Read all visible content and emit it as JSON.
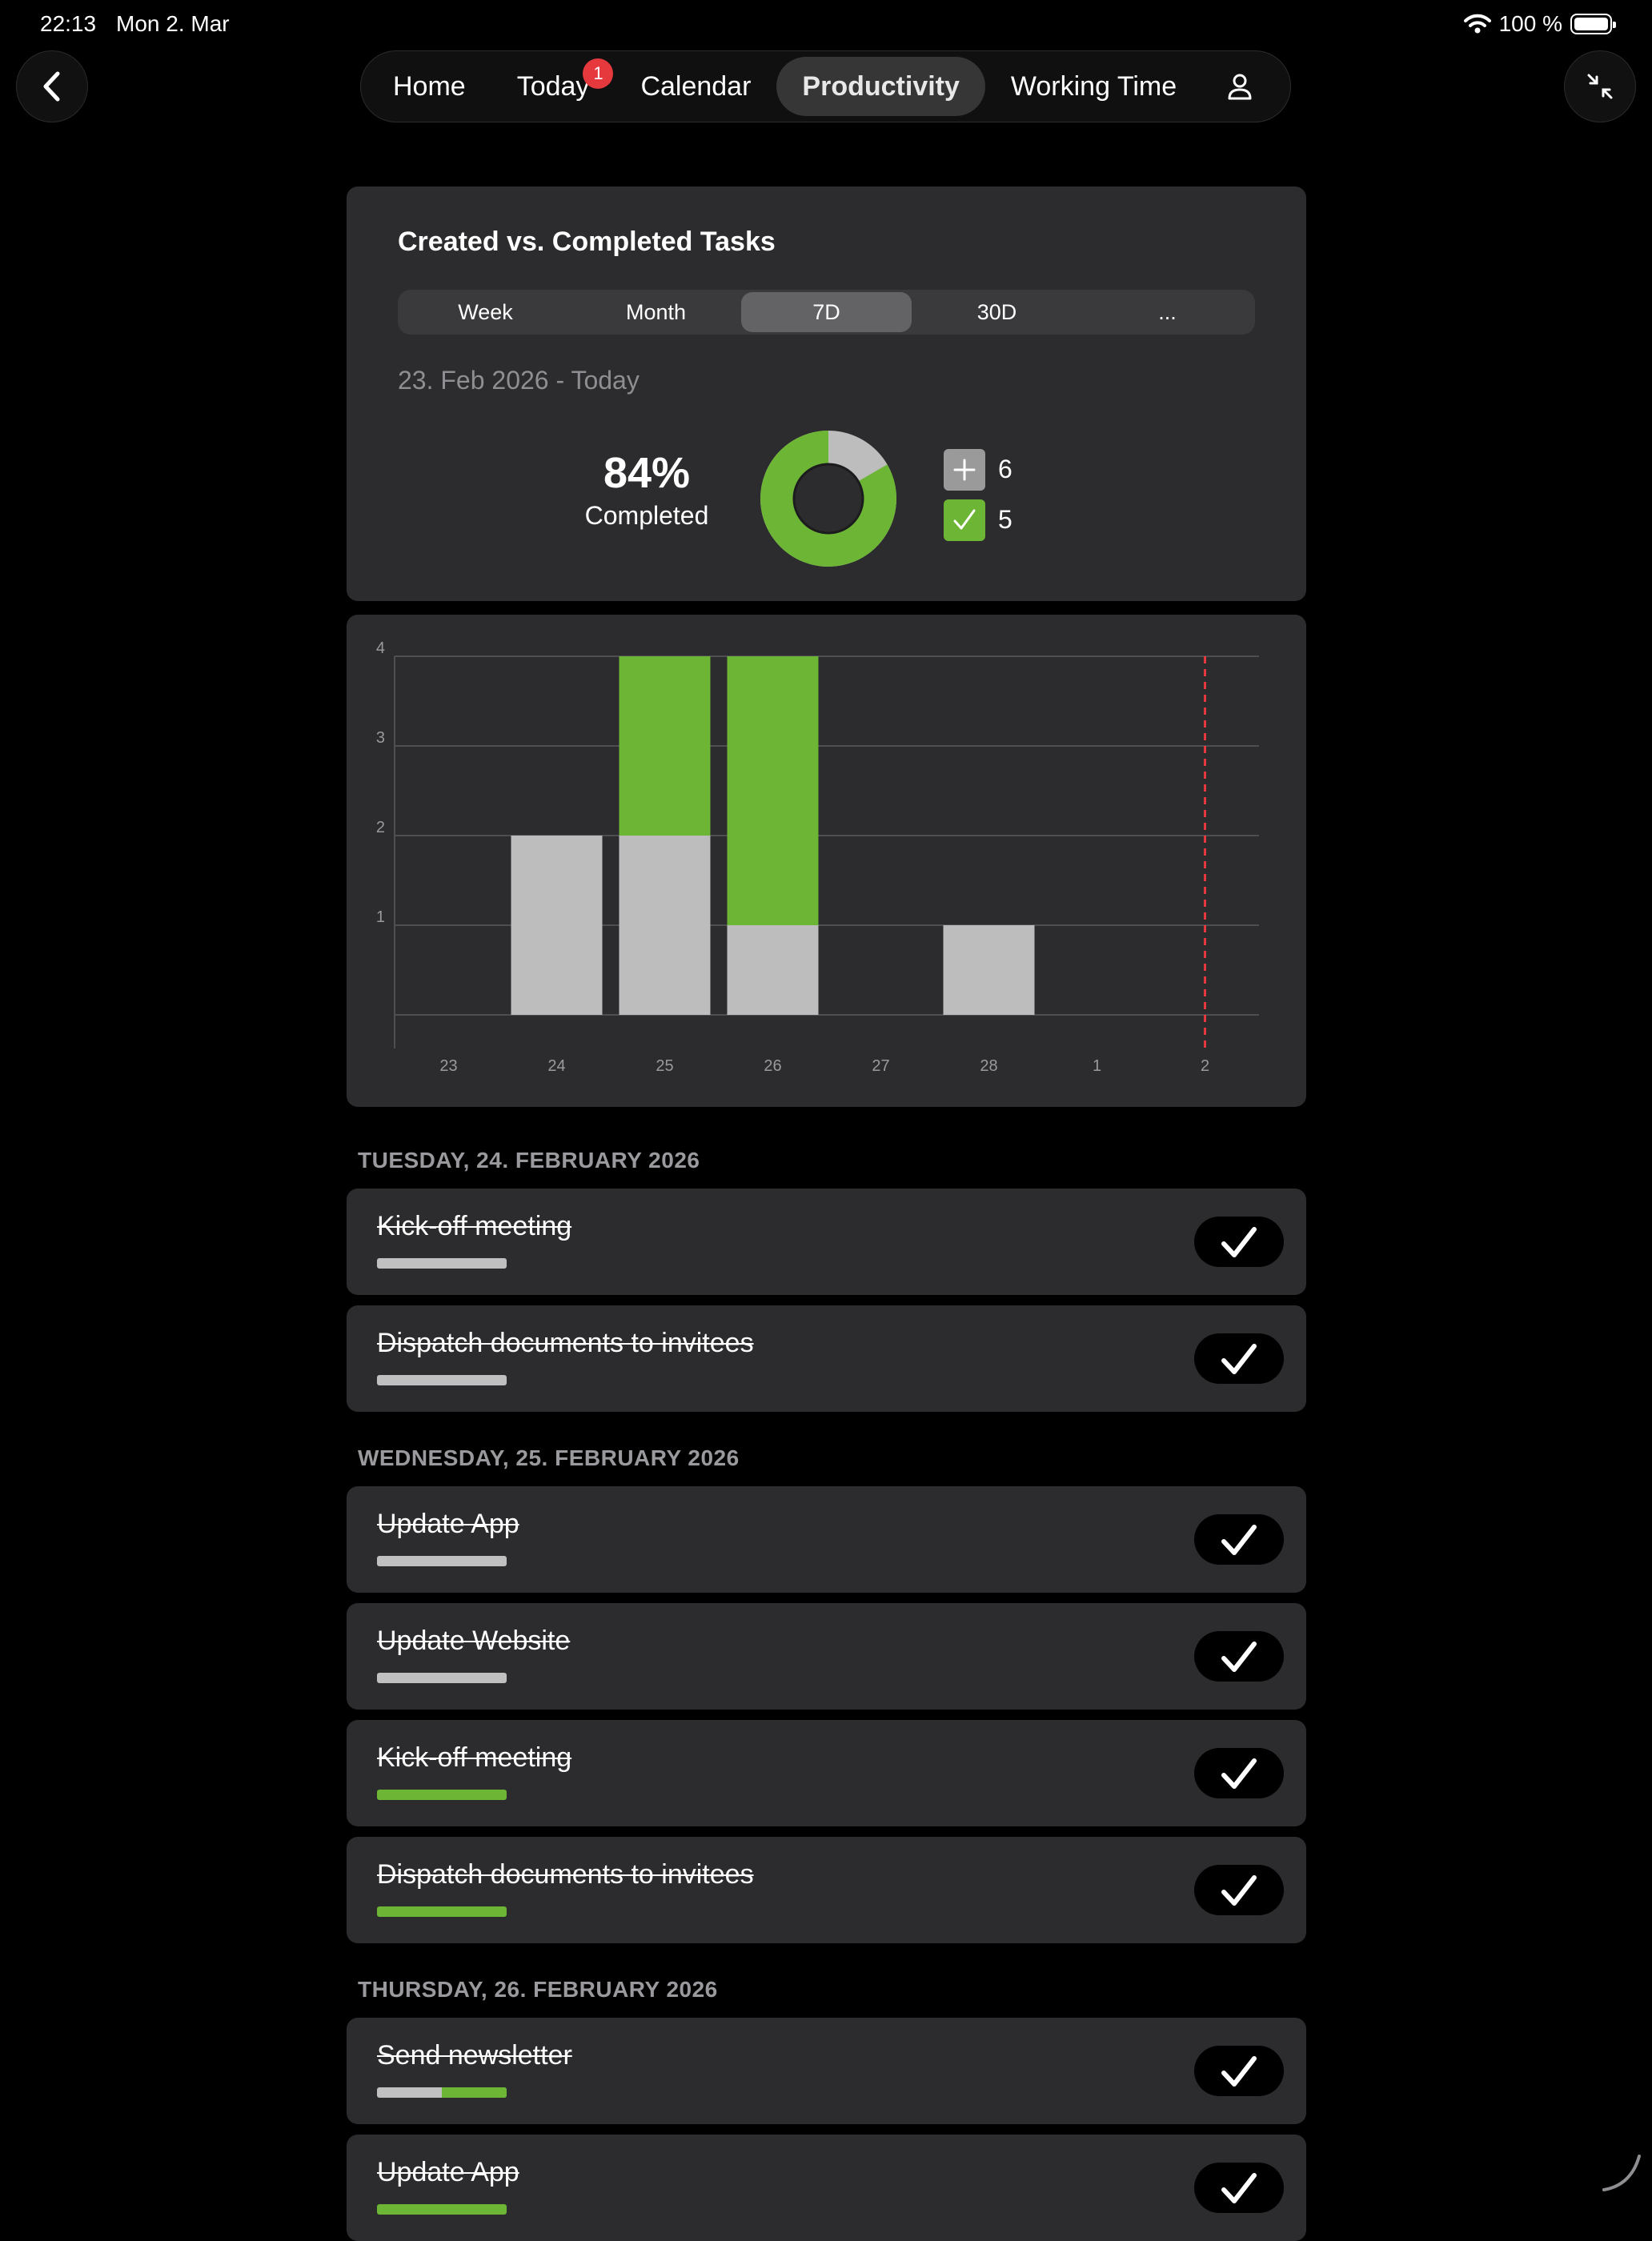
{
  "status_bar": {
    "time": "22:13",
    "date": "Mon 2. Mar",
    "battery": "100 %"
  },
  "nav": {
    "back_icon": "chevron-left-icon",
    "collapse_icon": "arrows-collapse-icon",
    "tabs": [
      {
        "label": "Home"
      },
      {
        "label": "Today",
        "badge": "1"
      },
      {
        "label": "Calendar"
      },
      {
        "label": "Productivity",
        "active": true
      },
      {
        "label": "Working Time"
      }
    ],
    "profile_icon": "person-icon"
  },
  "summary": {
    "title": "Created vs. Completed Tasks",
    "periods": [
      "Week",
      "Month",
      "7D",
      "30D",
      "..."
    ],
    "selected_period": "7D",
    "date_range": "23. Feb 2026 - Today",
    "percent": "84%",
    "percent_label": "Completed",
    "created_count": "6",
    "completed_count": "5",
    "colors": {
      "created": "#bdbdbd",
      "completed": "#6db535"
    }
  },
  "chart_data": {
    "type": "bar",
    "stacked": true,
    "categories": [
      "23",
      "24",
      "25",
      "26",
      "27",
      "28",
      "1",
      "2"
    ],
    "series": [
      {
        "values": [
          0,
          2,
          2,
          1,
          0,
          1,
          0,
          0
        ],
        "color": "#bdbdbd"
      },
      {
        "values": [
          0,
          0,
          2,
          3,
          0,
          0,
          0,
          0
        ],
        "color": "#6db535"
      }
    ],
    "yticks": [
      "1",
      "2",
      "3",
      "4"
    ],
    "ylim": [
      0,
      4
    ],
    "today_marker": "2",
    "grid": true
  },
  "days": [
    {
      "header": "TUESDAY, 24. FEBRUARY 2026",
      "tasks": [
        {
          "title": "Kick-off meeting",
          "bar": "gray"
        },
        {
          "title": "Dispatch documents to invitees",
          "bar": "gray"
        }
      ]
    },
    {
      "header": "WEDNESDAY, 25. FEBRUARY 2026",
      "tasks": [
        {
          "title": "Update App",
          "bar": "gray"
        },
        {
          "title": "Update Website",
          "bar": "gray"
        },
        {
          "title": "Kick-off meeting",
          "bar": "green"
        },
        {
          "title": "Dispatch documents to invitees",
          "bar": "green"
        }
      ]
    },
    {
      "header": "THURSDAY, 26. FEBRUARY 2026",
      "tasks": [
        {
          "title": "Send newsletter",
          "bar": "split"
        },
        {
          "title": "Update App",
          "bar": "green"
        }
      ]
    }
  ]
}
